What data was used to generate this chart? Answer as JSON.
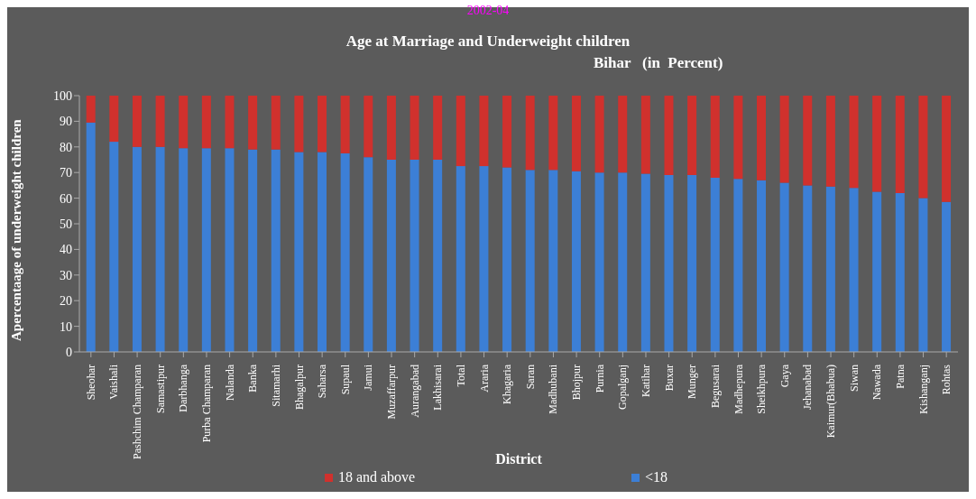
{
  "chart_data": {
    "type": "bar",
    "title": "Age at Marriage and Underweight children",
    "subtitle": "Bihar   (in  Percent)",
    "annotations": [
      "2002-04"
    ],
    "xlabel": "District",
    "ylabel": "Apercentaage  of underweight children",
    "categories": [
      "Sheohar",
      "Vaishali",
      "Pashchim Champaran",
      "Samastipur",
      "Darbhanga",
      "Purba Champaran",
      "Nalanda",
      "Banka",
      "Sitamarhi",
      "Bhagalpur",
      "Saharsa",
      "Supaul",
      "Jamui",
      "Muzaffarpur",
      "Aurangabad",
      "Lakhisarai",
      "Total",
      "Araria",
      "Khagaria",
      "Saran",
      "Madhubani",
      "Bhojpur",
      "Purnia",
      "Gopalganj",
      "Katihar",
      "Buxar",
      "Munger",
      "Begusarai",
      "Madhepura",
      "Sheikhpura",
      "Gaya",
      "Jehanabad",
      "Kaimur(Bhabua)",
      "Siwan",
      "Nawada",
      "Patna",
      "Kishanganj",
      "Rohtas"
    ],
    "series": [
      {
        "name": "<18",
        "color": "#3c7fd6",
        "values": [
          89.5,
          82,
          80,
          80,
          79.5,
          79.5,
          79.5,
          79,
          79,
          78,
          78,
          77.5,
          76,
          75,
          75,
          75,
          72.5,
          72.5,
          72,
          71,
          71,
          70.5,
          70,
          70,
          69.5,
          69,
          69,
          68,
          67.5,
          67,
          66,
          65,
          64.5,
          64,
          62.5,
          62,
          60,
          58.5
        ]
      },
      {
        "name": "18 and above",
        "color": "#d0312d",
        "values": [
          10.5,
          18,
          20,
          20,
          20.5,
          20.5,
          20.5,
          21,
          21,
          22,
          22,
          22.5,
          24,
          25,
          25,
          25,
          27.5,
          27.5,
          28,
          29,
          29,
          29.5,
          30,
          30,
          30.5,
          31,
          31,
          32,
          32.5,
          33,
          34,
          35,
          35.5,
          36,
          37.5,
          38,
          40,
          41.5
        ]
      }
    ],
    "stacked": true,
    "ylim": [
      0,
      100
    ],
    "yticks": [
      0,
      10,
      20,
      30,
      40,
      50,
      60,
      70,
      80,
      90,
      100
    ],
    "grid": false,
    "legend": "bottom"
  }
}
